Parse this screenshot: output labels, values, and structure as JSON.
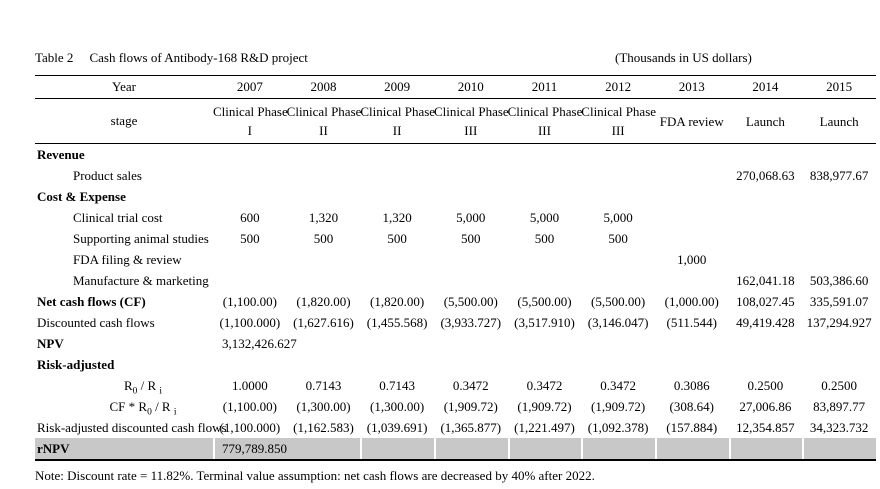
{
  "caption": {
    "label": "Table 2",
    "title": "Cash flows of Antibody-168 R&D project",
    "units": "(Thousands in US dollars)"
  },
  "table": {
    "header": {
      "year_label": "Year",
      "stage_label": "stage",
      "columns": [
        {
          "year": "2007",
          "stage": [
            "Clinical Phase",
            "I"
          ]
        },
        {
          "year": "2008",
          "stage": [
            "Clinical Phase",
            "II"
          ]
        },
        {
          "year": "2009",
          "stage": [
            "Clinical Phase",
            "II"
          ]
        },
        {
          "year": "2010",
          "stage": [
            "Clinical Phase",
            "III"
          ]
        },
        {
          "year": "2011",
          "stage": [
            "Clinical Phase",
            "III"
          ]
        },
        {
          "year": "2012",
          "stage": [
            "Clinical Phase",
            "III"
          ]
        },
        {
          "year": "2013",
          "stage": [
            "FDA review"
          ]
        },
        {
          "year": "2014",
          "stage": [
            "Launch"
          ]
        },
        {
          "year": "2015",
          "stage": [
            "Launch"
          ]
        }
      ]
    },
    "rows": [
      {
        "label": "Revenue",
        "bold": true,
        "indent": 0,
        "values": [
          "",
          "",
          "",
          "",
          "",
          "",
          "",
          "",
          ""
        ]
      },
      {
        "label": "Product sales",
        "indent": 1,
        "values": [
          "",
          "",
          "",
          "",
          "",
          "",
          "",
          "270,068.63",
          "838,977.67"
        ]
      },
      {
        "label": "Cost & Expense",
        "bold": true,
        "indent": 0,
        "values": [
          "",
          "",
          "",
          "",
          "",
          "",
          "",
          "",
          ""
        ]
      },
      {
        "label": "Clinical trial cost",
        "indent": 1,
        "values": [
          "600",
          "1,320",
          "1,320",
          "5,000",
          "5,000",
          "5,000",
          "",
          "",
          ""
        ]
      },
      {
        "label": "Supporting animal studies",
        "indent": 1,
        "values": [
          "500",
          "500",
          "500",
          "500",
          "500",
          "500",
          "",
          "",
          ""
        ]
      },
      {
        "label": "FDA filing & review",
        "indent": 1,
        "values": [
          "",
          "",
          "",
          "",
          "",
          "",
          "1,000",
          "",
          ""
        ]
      },
      {
        "label": "Manufacture & marketing",
        "indent": 1,
        "values": [
          "",
          "",
          "",
          "",
          "",
          "",
          "",
          "162,041.18",
          "503,386.60"
        ]
      },
      {
        "label": "Net cash flows (CF)",
        "bold": true,
        "indent": 0,
        "values": [
          "(1,100.00)",
          "(1,820.00)",
          "(1,820.00)",
          "(5,500.00)",
          "(5,500.00)",
          "(5,500.00)",
          "(1,000.00)",
          "108,027.45",
          "335,591.07"
        ]
      },
      {
        "label": "Discounted cash flows",
        "indent": 0,
        "values": [
          "(1,100.000)",
          "(1,627.616)",
          "(1,455.568)",
          "(3,933.727)",
          "(3,517.910)",
          "(3,146.047)",
          "(511.544)",
          "49,419.428",
          "137,294.927"
        ]
      },
      {
        "label": "NPV",
        "bold": true,
        "indent": 0,
        "merged_value": "3,132,426.627"
      },
      {
        "label": "Risk-adjusted",
        "bold": true,
        "indent": 0,
        "values": [
          "",
          "",
          "",
          "",
          "",
          "",
          "",
          "",
          ""
        ]
      },
      {
        "label_parts": [
          [
            "R",
            false
          ],
          [
            "0",
            true
          ],
          [
            " / R ",
            false
          ],
          [
            "i",
            true
          ]
        ],
        "indent": 2,
        "values": [
          "1.0000",
          "0.7143",
          "0.7143",
          "0.3472",
          "0.3472",
          "0.3472",
          "0.3086",
          "0.2500",
          "0.2500"
        ]
      },
      {
        "label_parts": [
          [
            "CF * R",
            false
          ],
          [
            "0",
            true
          ],
          [
            " / R ",
            false
          ],
          [
            "i",
            true
          ]
        ],
        "indent": 2,
        "values": [
          "(1,100.00)",
          "(1,300.00)",
          "(1,300.00)",
          "(1,909.72)",
          "(1,909.72)",
          "(1,909.72)",
          "(308.64)",
          "27,006.86",
          "83,897.77"
        ]
      },
      {
        "label": "Risk-adjusted discounted cash flows",
        "indent": 0,
        "values": [
          "(1,100.000)",
          "(1,162.583)",
          "(1,039.691)",
          "(1,365.877)",
          "(1,221.497)",
          "(1,092.378)",
          "(157.884)",
          "12,354.857",
          "34,323.732"
        ]
      },
      {
        "label": "rNPV",
        "bold": true,
        "indent": 0,
        "merged_value": "779,789.850",
        "highlight": true
      }
    ]
  },
  "note": "Note: Discount rate = 11.82%. Terminal value assumption: net cash flows are decreased by 40% after 2022.",
  "colors": {
    "highlight_row": "#c8c8c8",
    "rule": "#000000",
    "text": "#000000"
  }
}
